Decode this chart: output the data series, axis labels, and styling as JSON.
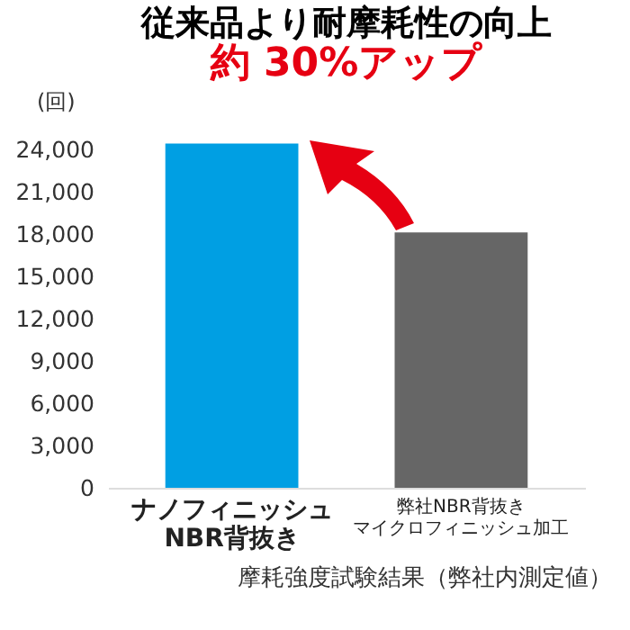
{
  "chart_data": {
    "type": "bar",
    "title": "従来品より耐摩耗性の向上",
    "subtitle": "約 30%アップ",
    "ylabel": "(回)",
    "categories": [
      "ナノフィニッシュNBR背抜き",
      "弊社NBR背抜きマイクロフィニッシュ加工"
    ],
    "values": [
      24400,
      18100
    ],
    "colors": [
      "#009fe3",
      "#666666"
    ],
    "ylim": [
      0,
      25000
    ],
    "yticks": [
      0,
      {
        "value": 3000,
        "label": "3,000"
      },
      {
        "value": 6000,
        "label": "6,000"
      },
      {
        "value": 9000,
        "label": "9,000"
      },
      {
        "value": 12000,
        "label": "12,000"
      },
      {
        "value": 15000,
        "label": "15,000"
      },
      {
        "value": 18000,
        "label": "18,000"
      },
      {
        "value": 21000,
        "label": "21,000"
      },
      {
        "value": 24000,
        "label": "24,000"
      }
    ],
    "grid": false,
    "annotations": [
      "摩耗強度試験結果（弊社内測定値）"
    ]
  }
}
